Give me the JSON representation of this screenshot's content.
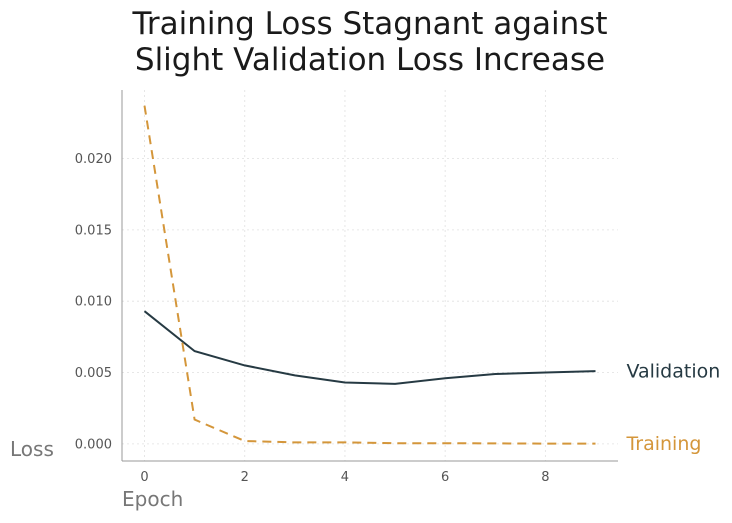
{
  "chart_data": {
    "type": "line",
    "title_lines": [
      "Training Loss Stagnant against",
      "Slight Validation Loss Increase"
    ],
    "xlabel": "Epoch",
    "ylabel": "Loss",
    "x": [
      0,
      1,
      2,
      3,
      4,
      5,
      6,
      7,
      8,
      9
    ],
    "xlim": [
      -0.45,
      9.45
    ],
    "ylim": [
      -0.0012,
      0.0248
    ],
    "x_ticks": [
      0,
      2,
      4,
      6,
      8
    ],
    "x_tick_labels": [
      "0",
      "2",
      "4",
      "6",
      "8"
    ],
    "y_ticks": [
      0.0,
      0.005,
      0.01,
      0.015,
      0.02
    ],
    "y_tick_labels": [
      "0.000",
      "0.005",
      "0.010",
      "0.015",
      "0.020"
    ],
    "grid": true,
    "legend": "direct labels at line ends",
    "series": [
      {
        "name": "Validation",
        "color": "#263a43",
        "style": "solid",
        "values": [
          0.0093,
          0.0065,
          0.0055,
          0.0048,
          0.0043,
          0.0042,
          0.0046,
          0.0049,
          0.005,
          0.0051
        ]
      },
      {
        "name": "Training",
        "color": "#d4963a",
        "style": "dashed",
        "values": [
          0.0237,
          0.0017,
          0.0002,
          0.0001,
          0.0001,
          5e-05,
          5e-05,
          3e-05,
          2e-05,
          2e-05
        ]
      }
    ]
  }
}
